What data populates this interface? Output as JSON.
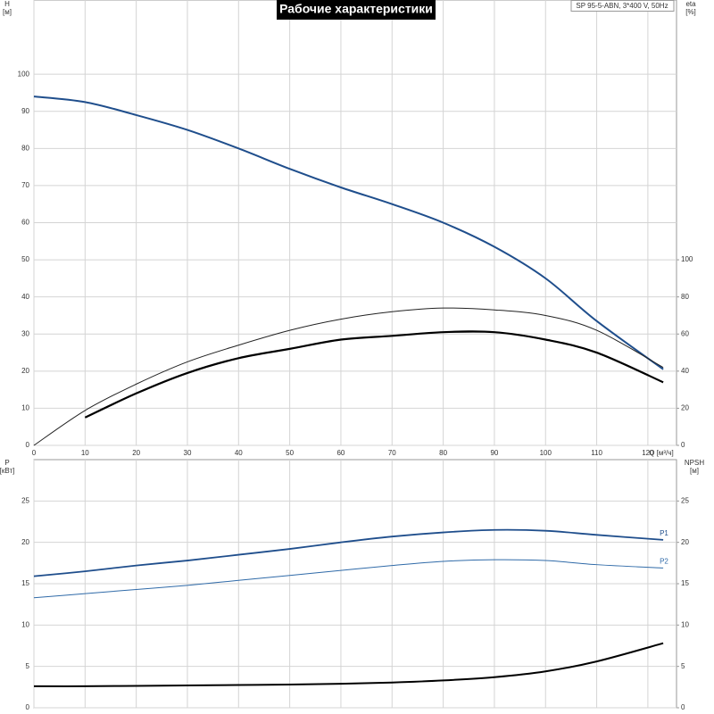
{
  "chart_data": [
    {
      "type": "line",
      "title": "Рабочие характеристики",
      "annotation": "SP 95-5-ABN, 3*400 V, 50Hz",
      "ylabel": [
        "H",
        "[м]"
      ],
      "y2label": [
        "eta",
        "[%]"
      ],
      "xlabel": "Q [м³/ч]",
      "x": [
        0,
        10,
        20,
        30,
        40,
        50,
        60,
        70,
        80,
        90,
        100,
        110,
        123
      ],
      "xlim": [
        0,
        125.6
      ],
      "xticks": [
        0,
        10,
        20,
        30,
        40,
        50,
        60,
        70,
        80,
        90,
        100,
        110,
        120
      ],
      "ylim": [
        0,
        120
      ],
      "yticks": [
        0,
        10,
        20,
        30,
        40,
        50,
        60,
        70,
        80,
        90,
        100
      ],
      "y2lim": [
        0,
        240
      ],
      "y2ticks": [
        0,
        20,
        40,
        60,
        80,
        100
      ],
      "grid": true,
      "series": [
        {
          "color": "#1f4e8c",
          "line_width": 2,
          "values": [
            94,
            92.5,
            89,
            85,
            80,
            74.5,
            69.5,
            65,
            60,
            53.5,
            45,
            33.5,
            20.5
          ]
        },
        {
          "color": "#222222",
          "line_width": 1,
          "axis": "y2",
          "values": [
            0,
            18.8,
            33,
            45,
            54,
            62,
            68,
            72,
            74,
            73,
            70,
            62,
            42
          ]
        },
        {
          "color": "#000000",
          "line_width": 2.2,
          "axis": "y2",
          "values": [
            null,
            15,
            28,
            39,
            47,
            52,
            57,
            59,
            61,
            61,
            57,
            50,
            34
          ]
        }
      ]
    },
    {
      "type": "line",
      "ylabel": [
        "P",
        "[кВт]"
      ],
      "y2label": [
        "NPSH",
        "[м]"
      ],
      "x": [
        0,
        10,
        20,
        30,
        40,
        50,
        60,
        70,
        80,
        90,
        100,
        110,
        123
      ],
      "ylim": [
        0,
        30
      ],
      "yticks": [
        0,
        5,
        10,
        15,
        20,
        25
      ],
      "y2lim": [
        0,
        30
      ],
      "y2ticks": [
        0,
        5,
        10,
        15,
        20,
        25
      ],
      "grid": true,
      "series": [
        {
          "name": "P1",
          "color": "#1f4e8c",
          "line_width": 1.8,
          "values": [
            15.9,
            16.5,
            17.2,
            17.8,
            18.5,
            19.2,
            20,
            20.7,
            21.2,
            21.5,
            21.4,
            20.9,
            20.3
          ]
        },
        {
          "name": "P2",
          "color": "#2f6aa8",
          "line_width": 1,
          "values": [
            13.3,
            13.8,
            14.3,
            14.8,
            15.4,
            16,
            16.6,
            17.2,
            17.7,
            17.9,
            17.8,
            17.3,
            16.9
          ]
        },
        {
          "color": "#000000",
          "line_width": 2,
          "axis": "y2",
          "values": [
            2.6,
            2.6,
            2.65,
            2.7,
            2.75,
            2.8,
            2.9,
            3.05,
            3.3,
            3.7,
            4.4,
            5.6,
            7.8
          ]
        }
      ]
    }
  ]
}
